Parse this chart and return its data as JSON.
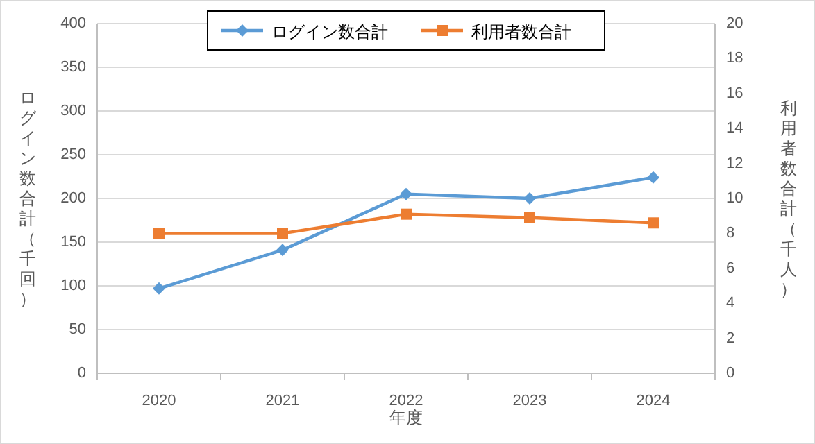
{
  "chart_data": {
    "type": "line",
    "xlabel": "年度",
    "ylabel": "ログイン数合計（千回）",
    "y2label": "利用者数合計（千人）",
    "categories": [
      "2020",
      "2021",
      "2022",
      "2023",
      "2024"
    ],
    "series": [
      {
        "name": "ログイン数合計",
        "color": "#5b9bd5",
        "marker": "diamond",
        "values": [
          97,
          141,
          205,
          200,
          224
        ]
      },
      {
        "name": "利用者数合計",
        "color": "#ed7d31",
        "marker": "square",
        "axis": "y2",
        "values": [
          8.0,
          8.0,
          9.1,
          8.9,
          8.6
        ]
      }
    ],
    "ylim": [
      0,
      400
    ],
    "yticks": [
      0,
      50,
      100,
      150,
      200,
      250,
      300,
      350,
      400
    ],
    "y2lim": [
      0,
      20
    ],
    "y2ticks": [
      0,
      2,
      4,
      6,
      8,
      10,
      12,
      14,
      16,
      18,
      20
    ],
    "grid": "y",
    "legend": "top"
  }
}
